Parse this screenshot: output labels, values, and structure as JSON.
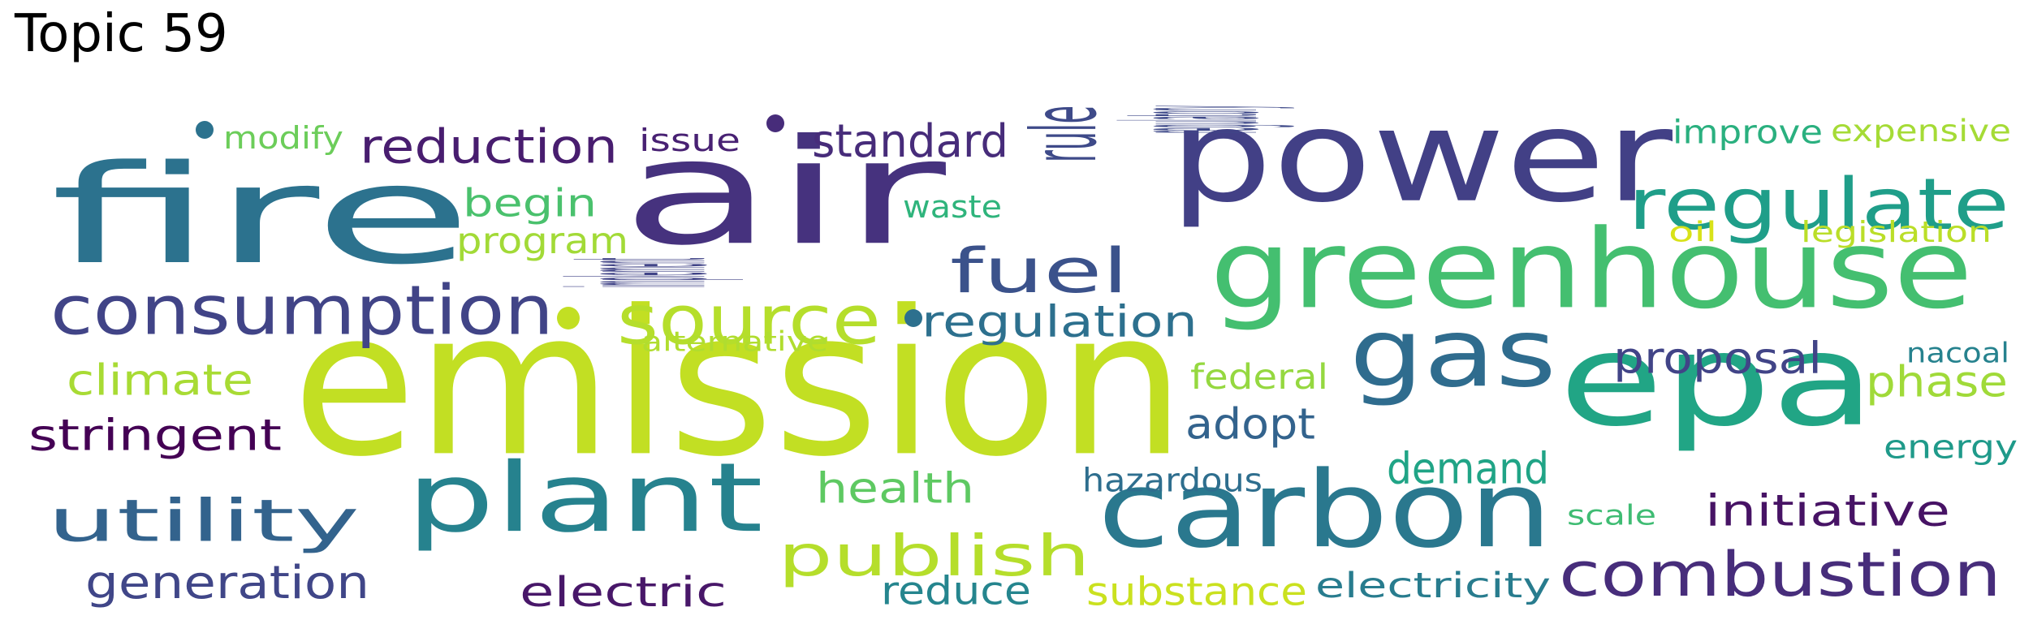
{
  "title": "Topic 59",
  "words": [
    {
      "text": "emission",
      "color": "#c2df23",
      "rotate": false
    },
    {
      "text": "air",
      "color": "#46327e",
      "rotate": false
    },
    {
      "text": "power",
      "color": "#424086",
      "rotate": false
    },
    {
      "text": "fire",
      "color": "#2c728e",
      "rotate": false
    },
    {
      "text": "epa",
      "color": "#21a585",
      "rotate": false
    },
    {
      "text": "greenhouse",
      "color": "#44bf70",
      "rotate": false
    },
    {
      "text": "carbon",
      "color": "#2a788e",
      "rotate": false
    },
    {
      "text": "plant",
      "color": "#26828e",
      "rotate": false
    },
    {
      "text": "gas",
      "color": "#2f6c8e",
      "rotate": false
    },
    {
      "text": "regulate",
      "color": "#1f9e89",
      "rotate": false
    },
    {
      "text": "consumption",
      "color": "#414487",
      "rotate": false
    },
    {
      "text": "combustion",
      "color": "#472d7b",
      "rotate": false
    },
    {
      "text": "source",
      "color": "#b5de2b",
      "rotate": false
    },
    {
      "text": "utility",
      "color": "#33638d",
      "rotate": false
    },
    {
      "text": "fuel",
      "color": "#3b528b",
      "rotate": false
    },
    {
      "text": "publish",
      "color": "#b5de2b",
      "rotate": false
    },
    {
      "text": "rule",
      "color": "#3e4a89",
      "rotate": false
    },
    {
      "text": "reduction",
      "color": "#481d6f",
      "rotate": false
    },
    {
      "text": "regulation",
      "color": "#2d708e",
      "rotate": false
    },
    {
      "text": "standard",
      "color": "#472c7a",
      "rotate": false
    },
    {
      "text": "stringent",
      "color": "#440154",
      "rotate": false
    },
    {
      "text": "generation",
      "color": "#404688",
      "rotate": false
    },
    {
      "text": "climate",
      "color": "#a8db34",
      "rotate": false
    },
    {
      "text": "proposal",
      "color": "#414487",
      "rotate": false
    },
    {
      "text": "initiative",
      "color": "#471365",
      "rotate": false
    },
    {
      "text": "phase",
      "color": "#a0da39",
      "rotate": false
    },
    {
      "text": "demand",
      "color": "#20a486",
      "rotate": false
    },
    {
      "text": "adopt",
      "color": "#33638d",
      "rotate": false
    },
    {
      "text": "health",
      "color": "#5ec962",
      "rotate": false
    },
    {
      "text": "electric",
      "color": "#481769",
      "rotate": false
    },
    {
      "text": "reduce",
      "color": "#25858e",
      "rotate": false
    },
    {
      "text": "substance",
      "color": "#cae11f",
      "rotate": false
    },
    {
      "text": "electricity",
      "color": "#287c8e",
      "rotate": false
    },
    {
      "text": "begin",
      "color": "#4ac16d",
      "rotate": false
    },
    {
      "text": "program",
      "color": "#a2da37",
      "rotate": false
    },
    {
      "text": "implement",
      "color": "#414487",
      "rotate": true
    },
    {
      "text": "regulatory",
      "color": "#3e4989",
      "rotate": true
    },
    {
      "text": "hazardous",
      "color": "#2e6e8e",
      "rotate": false
    },
    {
      "text": "energy",
      "color": "#1f9a8a",
      "rotate": false
    },
    {
      "text": "federal",
      "color": "#95d840",
      "rotate": false
    },
    {
      "text": "improve",
      "color": "#2ab07f",
      "rotate": false
    },
    {
      "text": "modify",
      "color": "#6ccd5a",
      "rotate": false
    },
    {
      "text": "issue",
      "color": "#482173",
      "rotate": false
    },
    {
      "text": "waste",
      "color": "#2fb47c",
      "rotate": false
    },
    {
      "text": "expensive",
      "color": "#a5db36",
      "rotate": false
    },
    {
      "text": "legislation",
      "color": "#bade28",
      "rotate": false
    },
    {
      "text": "oil",
      "color": "#d8e219",
      "rotate": false
    },
    {
      "text": "alternative",
      "color": "#b0dd2f",
      "rotate": false
    },
    {
      "text": "nacoal",
      "color": "#26828e",
      "rotate": false
    },
    {
      "text": "scale",
      "color": "#3fbc73",
      "rotate": false
    }
  ]
}
